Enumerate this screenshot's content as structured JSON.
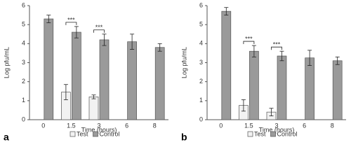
{
  "chart_data": [
    {
      "type": "bar",
      "panel": "a",
      "x_label": "Time (hours)",
      "y_label": "Log pfu/mL",
      "categories": [
        "0",
        "1.5",
        "3",
        "6",
        "8"
      ],
      "ylim": [
        0,
        6
      ],
      "yticks": [
        0,
        1,
        2,
        3,
        4,
        5,
        6
      ],
      "series": [
        {
          "name": "Test",
          "color": "#f2f2f2",
          "values": [
            null,
            1.45,
            1.2,
            null,
            null
          ],
          "errors": [
            null,
            0.4,
            0.1,
            null,
            null
          ]
        },
        {
          "name": "Control",
          "color": "#9a9a9a",
          "values": [
            5.3,
            4.6,
            4.2,
            4.1,
            3.8
          ],
          "errors": [
            0.2,
            0.3,
            0.3,
            0.4,
            0.2
          ]
        }
      ],
      "significance": [
        null,
        "***",
        "***",
        null,
        null
      ]
    },
    {
      "type": "bar",
      "panel": "b",
      "x_label": "Time (hours)",
      "y_label": "Log pfu/mL",
      "categories": [
        "0",
        "1.5",
        "3",
        "6",
        "8"
      ],
      "ylim": [
        0,
        6
      ],
      "yticks": [
        0,
        1,
        2,
        3,
        4,
        5,
        6
      ],
      "series": [
        {
          "name": "Test",
          "color": "#f2f2f2",
          "values": [
            null,
            0.75,
            0.4,
            null,
            null
          ],
          "errors": [
            null,
            0.3,
            0.2,
            null,
            null
          ]
        },
        {
          "name": "Control",
          "color": "#9a9a9a",
          "values": [
            5.7,
            3.6,
            3.35,
            3.25,
            3.1
          ],
          "errors": [
            0.2,
            0.3,
            0.25,
            0.4,
            0.2
          ]
        }
      ],
      "significance": [
        null,
        "***",
        "***",
        null,
        null
      ]
    }
  ]
}
